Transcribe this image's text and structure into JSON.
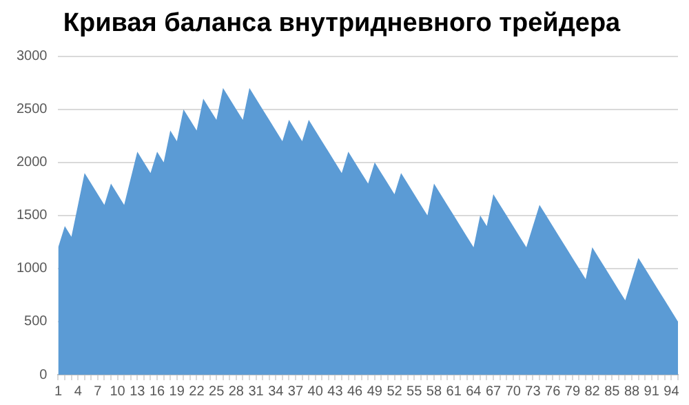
{
  "chart_data": {
    "type": "area",
    "title": "Кривая баланса внутридневного трейдера",
    "categories": [
      "1",
      null,
      null,
      "4",
      null,
      null,
      "7",
      null,
      null,
      "10",
      null,
      null,
      "13",
      null,
      null,
      "16",
      null,
      null,
      "19",
      null,
      null,
      "22",
      null,
      null,
      "25",
      null,
      null,
      "28",
      null,
      null,
      "31",
      null,
      null,
      "34",
      null,
      null,
      "37",
      null,
      null,
      "40",
      null,
      null,
      "43",
      null,
      null,
      "46",
      null,
      null,
      "49",
      null,
      null,
      "52",
      null,
      null,
      "55",
      null,
      null,
      "58",
      null,
      null,
      "61",
      null,
      null,
      "64",
      null,
      null,
      "67",
      null,
      null,
      "70",
      null,
      null,
      "73",
      null,
      null,
      "76",
      null,
      null,
      "79",
      null,
      null,
      "82",
      null,
      null,
      "85",
      null,
      null,
      "88",
      null,
      null,
      "91",
      null,
      null,
      "94",
      null
    ],
    "values": [
      1200,
      1400,
      1300,
      1600,
      1900,
      1800,
      1700,
      1600,
      1800,
      1700,
      1600,
      1850,
      2100,
      2000,
      1900,
      2100,
      2000,
      2300,
      2200,
      2500,
      2400,
      2300,
      2600,
      2500,
      2400,
      2700,
      2600,
      2500,
      2400,
      2700,
      2600,
      2500,
      2400,
      2300,
      2200,
      2400,
      2300,
      2200,
      2400,
      2300,
      2200,
      2100,
      2000,
      1900,
      2100,
      2000,
      1900,
      1800,
      2000,
      1900,
      1800,
      1700,
      1900,
      1800,
      1700,
      1600,
      1500,
      1800,
      1700,
      1600,
      1500,
      1400,
      1300,
      1200,
      1500,
      1400,
      1700,
      1600,
      1500,
      1400,
      1300,
      1200,
      1400,
      1600,
      1500,
      1400,
      1300,
      1200,
      1100,
      1000,
      900,
      1200,
      1100,
      1000,
      900,
      800,
      700,
      900,
      1100,
      1000,
      900,
      800,
      700,
      600,
      500
    ],
    "color": "#5b9bd5",
    "ylim": [
      0,
      3000
    ],
    "yticks": [
      0,
      500,
      1000,
      1500,
      2000,
      2500,
      3000
    ],
    "grid": "y"
  }
}
